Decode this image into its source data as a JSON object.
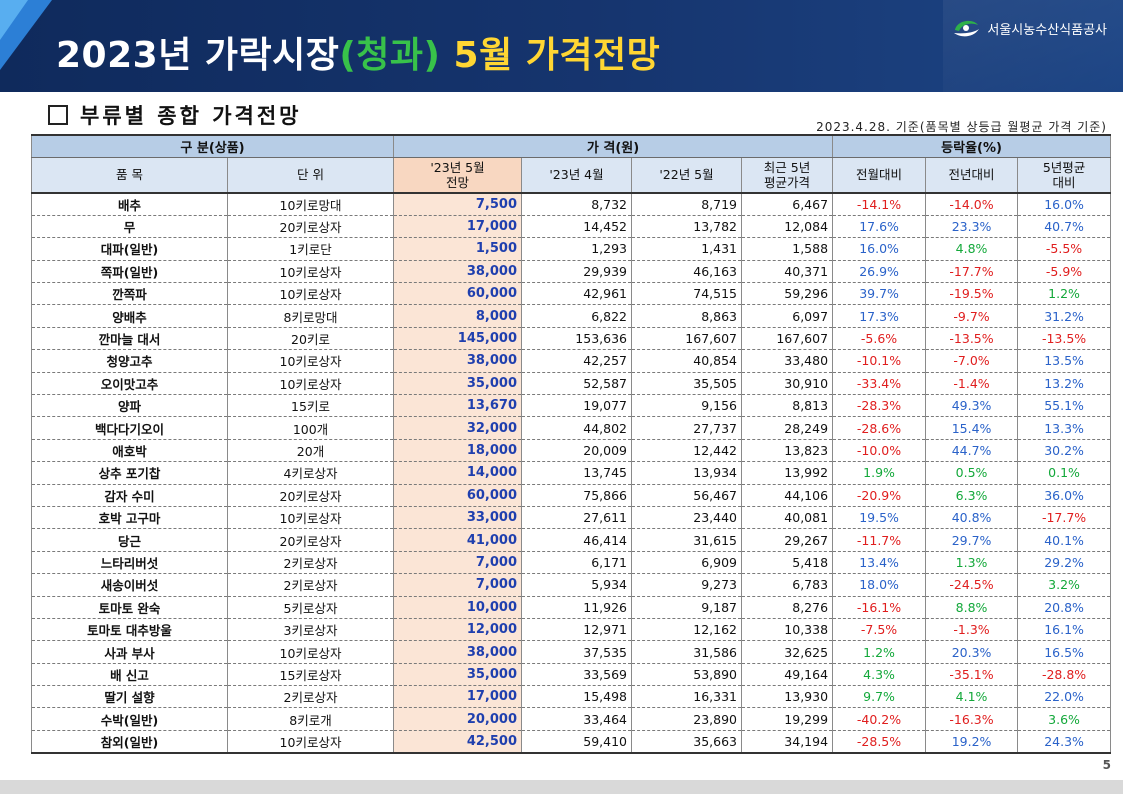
{
  "header": {
    "title_part1": "2023년 가락시장",
    "title_part2": "(청과)",
    "title_part3": " 5월 가격전망",
    "org_name": "서울시농수산식품공사"
  },
  "section": {
    "title": "부류별 종합 가격전망",
    "basis": "2023.4.28. 기준(품목별 상등급 월평균 가격 기준)"
  },
  "table": {
    "group_headers": {
      "category": "구 분(상품)",
      "price": "가 격(원)",
      "rate": "등락율(%)"
    },
    "columns": {
      "item": "품 목",
      "unit": "단 위",
      "forecast_line1": "'23년 5월",
      "forecast_line2": "전망",
      "apr23": "'23년 4월",
      "may22": "'22년 5월",
      "avg5_line1": "최근 5년",
      "avg5_line2": "평균가격",
      "mom": "전월대비",
      "yoy": "전년대비",
      "vs5_line1": "5년평균",
      "vs5_line2": "대비"
    },
    "rows": [
      {
        "item": "배추",
        "unit": "10키로망대",
        "forecast": "7,500",
        "apr23": "8,732",
        "may22": "8,719",
        "avg5": "6,467",
        "mom": "-14.1%",
        "yoy": "-14.0%",
        "vs5": "16.0%"
      },
      {
        "item": "무",
        "unit": "20키로상자",
        "forecast": "17,000",
        "apr23": "14,452",
        "may22": "13,782",
        "avg5": "12,084",
        "mom": "17.6%",
        "yoy": "23.3%",
        "vs5": "40.7%"
      },
      {
        "item": "대파(일반)",
        "unit": "1키로단",
        "forecast": "1,500",
        "apr23": "1,293",
        "may22": "1,431",
        "avg5": "1,588",
        "mom": "16.0%",
        "yoy": "4.8%",
        "vs5": "-5.5%"
      },
      {
        "item": "쪽파(일반)",
        "unit": "10키로상자",
        "forecast": "38,000",
        "apr23": "29,939",
        "may22": "46,163",
        "avg5": "40,371",
        "mom": "26.9%",
        "yoy": "-17.7%",
        "vs5": "-5.9%"
      },
      {
        "item": "깐쪽파",
        "unit": "10키로상자",
        "forecast": "60,000",
        "apr23": "42,961",
        "may22": "74,515",
        "avg5": "59,296",
        "mom": "39.7%",
        "yoy": "-19.5%",
        "vs5": "1.2%"
      },
      {
        "item": "양배추",
        "unit": "8키로망대",
        "forecast": "8,000",
        "apr23": "6,822",
        "may22": "8,863",
        "avg5": "6,097",
        "mom": "17.3%",
        "yoy": "-9.7%",
        "vs5": "31.2%"
      },
      {
        "item": "깐마늘 대서",
        "unit": "20키로",
        "forecast": "145,000",
        "apr23": "153,636",
        "may22": "167,607",
        "avg5": "167,607",
        "mom": "-5.6%",
        "yoy": "-13.5%",
        "vs5": "-13.5%"
      },
      {
        "item": "청양고추",
        "unit": "10키로상자",
        "forecast": "38,000",
        "apr23": "42,257",
        "may22": "40,854",
        "avg5": "33,480",
        "mom": "-10.1%",
        "yoy": "-7.0%",
        "vs5": "13.5%"
      },
      {
        "item": "오이맛고추",
        "unit": "10키로상자",
        "forecast": "35,000",
        "apr23": "52,587",
        "may22": "35,505",
        "avg5": "30,910",
        "mom": "-33.4%",
        "yoy": "-1.4%",
        "vs5": "13.2%"
      },
      {
        "item": "양파",
        "unit": "15키로",
        "forecast": "13,670",
        "apr23": "19,077",
        "may22": "9,156",
        "avg5": "8,813",
        "mom": "-28.3%",
        "yoy": "49.3%",
        "vs5": "55.1%"
      },
      {
        "item": "백다다기오이",
        "unit": "100개",
        "forecast": "32,000",
        "apr23": "44,802",
        "may22": "27,737",
        "avg5": "28,249",
        "mom": "-28.6%",
        "yoy": "15.4%",
        "vs5": "13.3%"
      },
      {
        "item": "애호박",
        "unit": "20개",
        "forecast": "18,000",
        "apr23": "20,009",
        "may22": "12,442",
        "avg5": "13,823",
        "mom": "-10.0%",
        "yoy": "44.7%",
        "vs5": "30.2%"
      },
      {
        "item": "상추 포기찹",
        "unit": "4키로상자",
        "forecast": "14,000",
        "apr23": "13,745",
        "may22": "13,934",
        "avg5": "13,992",
        "mom": "1.9%",
        "yoy": "0.5%",
        "vs5": "0.1%"
      },
      {
        "item": "감자 수미",
        "unit": "20키로상자",
        "forecast": "60,000",
        "apr23": "75,866",
        "may22": "56,467",
        "avg5": "44,106",
        "mom": "-20.9%",
        "yoy": "6.3%",
        "vs5": "36.0%"
      },
      {
        "item": "호박 고구마",
        "unit": "10키로상자",
        "forecast": "33,000",
        "apr23": "27,611",
        "may22": "23,440",
        "avg5": "40,081",
        "mom": "19.5%",
        "yoy": "40.8%",
        "vs5": "-17.7%"
      },
      {
        "item": "당근",
        "unit": "20키로상자",
        "forecast": "41,000",
        "apr23": "46,414",
        "may22": "31,615",
        "avg5": "29,267",
        "mom": "-11.7%",
        "yoy": "29.7%",
        "vs5": "40.1%"
      },
      {
        "item": "느타리버섯",
        "unit": "2키로상자",
        "forecast": "7,000",
        "apr23": "6,171",
        "may22": "6,909",
        "avg5": "5,418",
        "mom": "13.4%",
        "yoy": "1.3%",
        "vs5": "29.2%"
      },
      {
        "item": "새송이버섯",
        "unit": "2키로상자",
        "forecast": "7,000",
        "apr23": "5,934",
        "may22": "9,273",
        "avg5": "6,783",
        "mom": "18.0%",
        "yoy": "-24.5%",
        "vs5": "3.2%"
      },
      {
        "item": "토마토 완숙",
        "unit": "5키로상자",
        "forecast": "10,000",
        "apr23": "11,926",
        "may22": "9,187",
        "avg5": "8,276",
        "mom": "-16.1%",
        "yoy": "8.8%",
        "vs5": "20.8%"
      },
      {
        "item": "토마토 대추방울",
        "unit": "3키로상자",
        "forecast": "12,000",
        "apr23": "12,971",
        "may22": "12,162",
        "avg5": "10,338",
        "mom": "-7.5%",
        "yoy": "-1.3%",
        "vs5": "16.1%"
      },
      {
        "item": "사과 부사",
        "unit": "10키로상자",
        "forecast": "38,000",
        "apr23": "37,535",
        "may22": "31,586",
        "avg5": "32,625",
        "mom": "1.2%",
        "yoy": "20.3%",
        "vs5": "16.5%"
      },
      {
        "item": "배 신고",
        "unit": "15키로상자",
        "forecast": "35,000",
        "apr23": "33,569",
        "may22": "53,890",
        "avg5": "49,164",
        "mom": "4.3%",
        "yoy": "-35.1%",
        "vs5": "-28.8%"
      },
      {
        "item": "딸기 설향",
        "unit": "2키로상자",
        "forecast": "17,000",
        "apr23": "15,498",
        "may22": "16,331",
        "avg5": "13,930",
        "mom": "9.7%",
        "yoy": "4.1%",
        "vs5": "22.0%"
      },
      {
        "item": "수박(일반)",
        "unit": "8키로개",
        "forecast": "20,000",
        "apr23": "33,464",
        "may22": "23,890",
        "avg5": "19,299",
        "mom": "-40.2%",
        "yoy": "-16.3%",
        "vs5": "3.6%"
      },
      {
        "item": "참외(일반)",
        "unit": "10키로상자",
        "forecast": "42,500",
        "apr23": "59,410",
        "may22": "35,663",
        "avg5": "34,194",
        "mom": "-28.5%",
        "yoy": "19.2%",
        "vs5": "24.3%"
      }
    ]
  },
  "colors": {
    "negative": "#e01e1e",
    "positive_large": "#2a62c9",
    "positive_small": "#13a83a",
    "forecast_text": "#1f3fae",
    "forecast_bg": "#fbe5d6"
  },
  "page_number": "5"
}
